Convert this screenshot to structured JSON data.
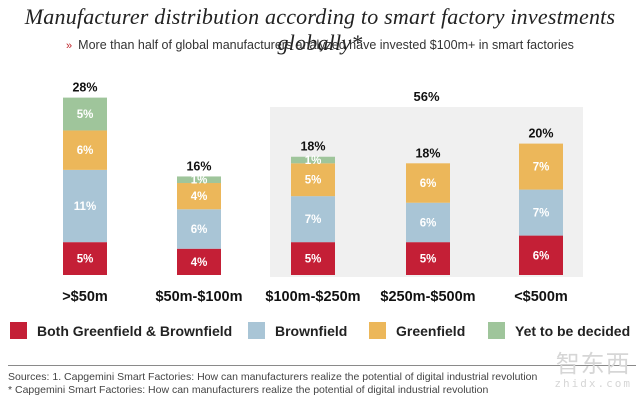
{
  "title": "Manufacturer distribution according to smart factory investments globally*",
  "subtitle": {
    "bullet": "»",
    "text": "More than half of global manufacturers analyzed have invested $100m+ in smart factories"
  },
  "chart_data": {
    "type": "bar",
    "stacked": true,
    "title": "Manufacturer distribution according to smart factory investments globally*",
    "xlabel": "",
    "ylabel": "",
    "ylim": [
      0,
      28
    ],
    "grid": false,
    "categories": [
      ">$50m",
      "$50m-$100m",
      "$100m-$250m",
      "$250m-$500m",
      "<$500m"
    ],
    "totals": [
      "28%",
      "16%",
      "18%",
      "18%",
      "20%"
    ],
    "series": [
      {
        "name": "Both Greenfield & Brownfield",
        "color": "#c41f36",
        "values": [
          5,
          4,
          5,
          5,
          6
        ]
      },
      {
        "name": "Brownfield",
        "color": "#a9c5d6",
        "values": [
          11,
          6,
          7,
          6,
          7
        ]
      },
      {
        "name": "Greenfield",
        "color": "#ecb75a",
        "values": [
          6,
          4,
          5,
          6,
          7
        ]
      },
      {
        "name": "Yet to be decided",
        "color": "#9fc59b",
        "values": [
          5,
          1,
          1,
          0,
          0
        ]
      }
    ],
    "group_annotation": {
      "label": "56%",
      "categories": [
        "$100m-$250m",
        "$250m-$500m",
        "<$500m"
      ],
      "background": "#f0f0f0"
    },
    "legend_position": "bottom"
  },
  "legend": [
    {
      "label": "Both Greenfield & Brownfield",
      "color": "#c41f36"
    },
    {
      "label": "Brownfield",
      "color": "#a9c5d6"
    },
    {
      "label": "Greenfield",
      "color": "#ecb75a"
    },
    {
      "label": "Yet to be decided",
      "color": "#9fc59b"
    }
  ],
  "sources": {
    "line1": "Sources: 1. Capgemini Smart Factories: How can manufacturers realize the potential of digital industrial revolution",
    "line2": "* Capgemini Smart Factories: How can manufacturers realize the potential of digital industrial revolution"
  },
  "watermark": {
    "cn": "智东西",
    "en": "zhidx.com"
  }
}
